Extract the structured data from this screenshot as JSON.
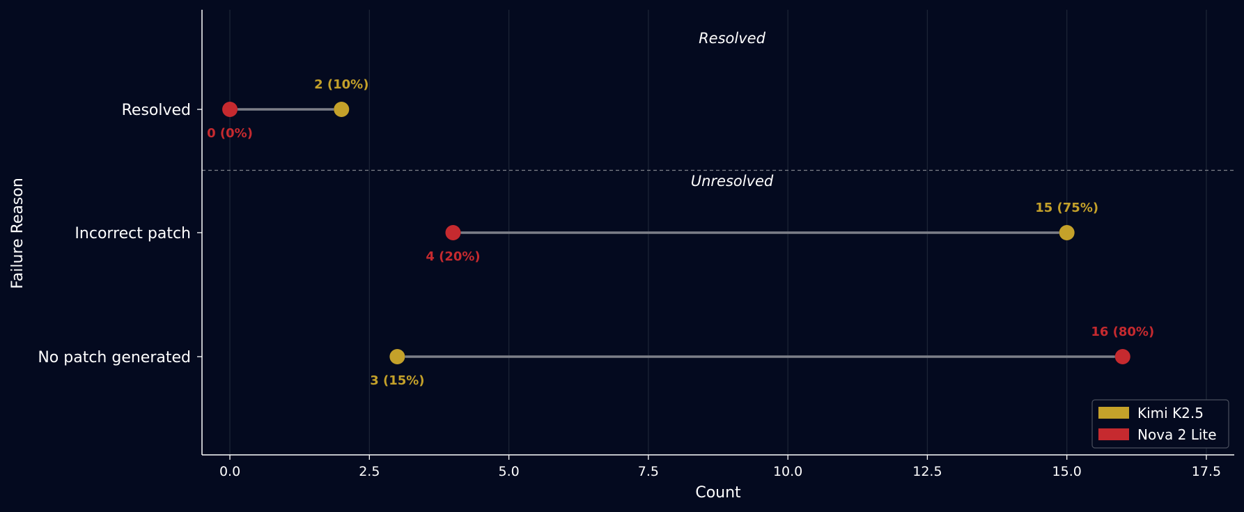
{
  "chart_data": {
    "type": "dumbbell",
    "xlabel": "Count",
    "ylabel": "Failure Reason",
    "xlim": [
      -0.5,
      18
    ],
    "xticks": [
      0.0,
      2.5,
      5.0,
      7.5,
      10.0,
      12.5,
      15.0,
      17.5
    ],
    "xtick_labels": [
      "0.0",
      "2.5",
      "5.0",
      "7.5",
      "10.0",
      "12.5",
      "15.0",
      "17.5"
    ],
    "grid": "vertical",
    "legend_position": "bottom-right",
    "categories": [
      "Resolved",
      "Incorrect patch",
      "No patch generated"
    ],
    "groups": [
      {
        "label": "Resolved",
        "categories": [
          "Resolved"
        ]
      },
      {
        "label": "Unresolved",
        "categories": [
          "Incorrect patch",
          "No patch generated"
        ]
      }
    ],
    "series": [
      {
        "name": "Kimi K2.5",
        "color": "#c4a12a",
        "values": [
          2,
          15,
          3
        ],
        "labels": [
          "2 (10%)",
          "15 (75%)",
          "3 (15%)"
        ]
      },
      {
        "name": "Nova 2 Lite",
        "color": "#c62a2f",
        "values": [
          0,
          4,
          16
        ],
        "labels": [
          "0 (0%)",
          "4 (20%)",
          "16 (80%)"
        ]
      }
    ]
  },
  "colors": {
    "background": "#040a1f",
    "axis": "#ffffff",
    "grid": "#1c2436",
    "connector": "#7d7f88",
    "divider": "#80838c"
  }
}
